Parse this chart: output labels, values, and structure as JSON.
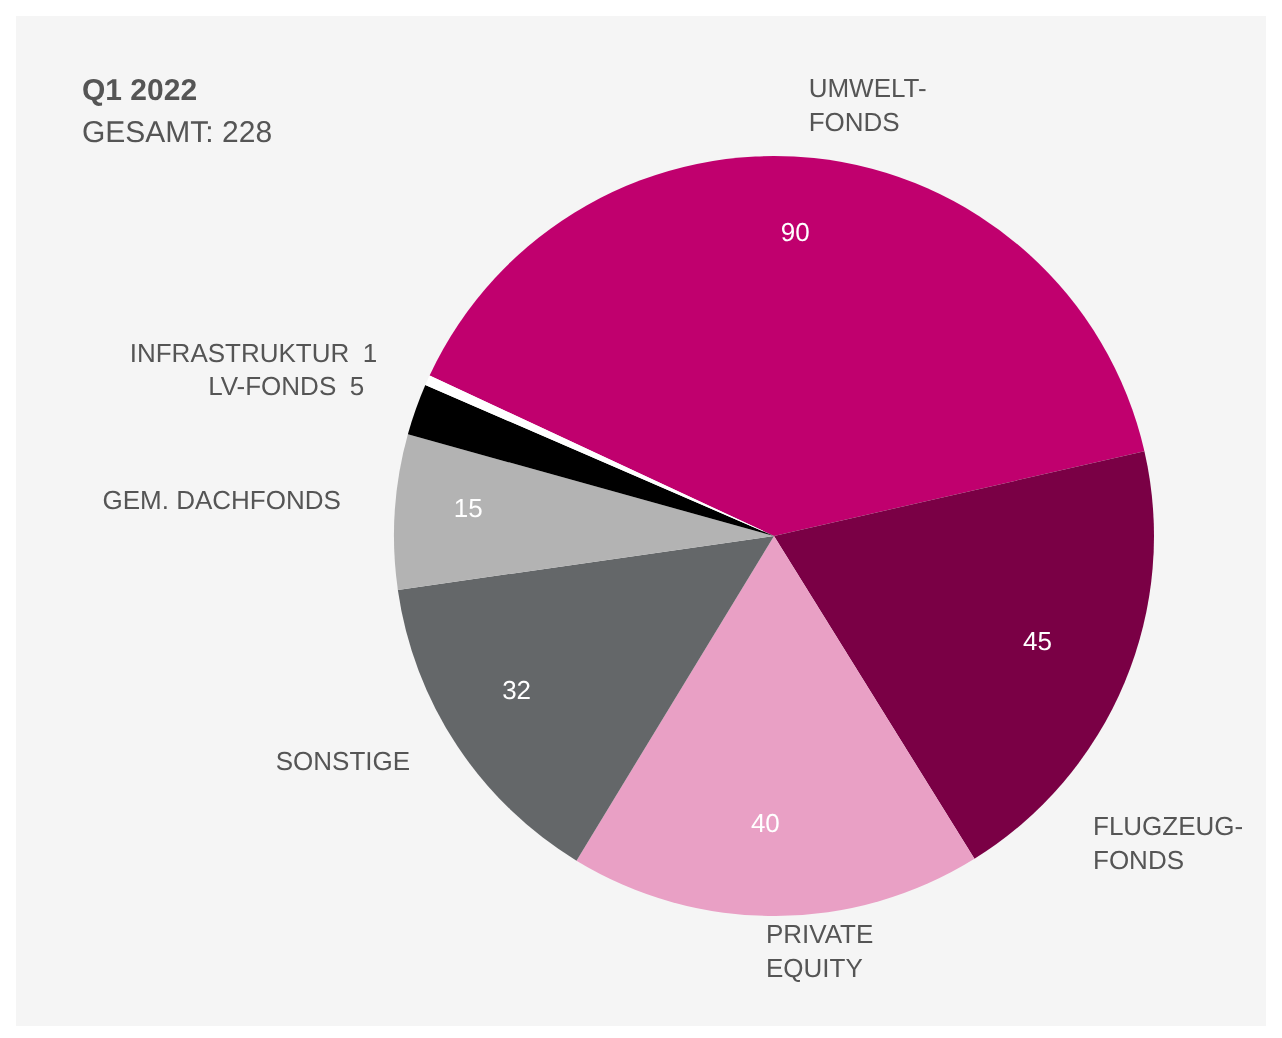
{
  "chart_data": {
    "type": "pie",
    "title": "Q1 2022",
    "subtitle": "GESAMT: 228",
    "categories": [
      "UMWELT-\nFONDS",
      "FLUGZEUG-\nFONDS",
      "PRIVATE\nEQUITY",
      "SONSTIGE",
      "GEM. DACHFONDS",
      "LV-FONDS",
      "INFRASTRUKTUR"
    ],
    "values": [
      90,
      45,
      40,
      32,
      15,
      5,
      1
    ],
    "colors": [
      "#c0006e",
      "#7a0045",
      "#e9a0c5",
      "#646769",
      "#b3b3b3",
      "#000000",
      "#ffffff"
    ],
    "data_labels": true,
    "legend": false
  }
}
